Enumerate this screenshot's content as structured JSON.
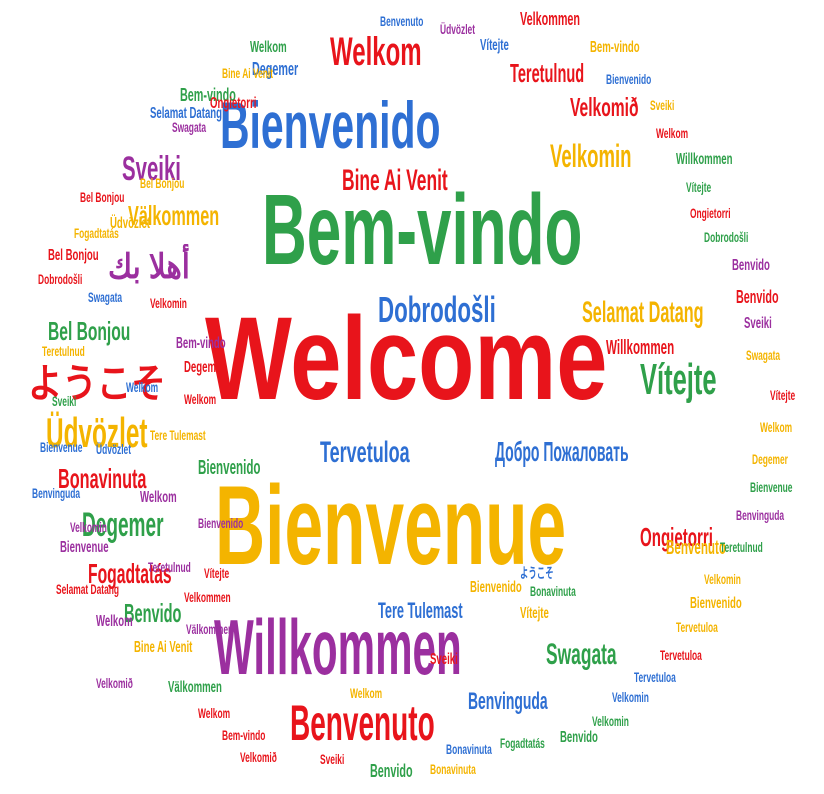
{
  "colors": {
    "red": "#e8141b",
    "blue": "#2e6fd3",
    "green": "#2fa04a",
    "orange": "#f4b400",
    "purple": "#9b2f9f",
    "background": "#ffffff"
  },
  "words": [
    {
      "text": "Welcome",
      "color": "red"
    },
    {
      "text": "Bienvenue",
      "color": "orange"
    },
    {
      "text": "Bem-vindo",
      "color": "green"
    },
    {
      "text": "Bienvenido",
      "color": "blue"
    },
    {
      "text": "Willkommen",
      "color": "purple"
    },
    {
      "text": "Benvenuto",
      "color": "red"
    },
    {
      "text": "Welkom",
      "color": "red"
    },
    {
      "text": "Dobrodošli",
      "color": "blue"
    },
    {
      "text": "Vítejte",
      "color": "green"
    },
    {
      "text": "Üdvözlet",
      "color": "orange"
    },
    {
      "text": "Välkommen",
      "color": "orange"
    },
    {
      "text": "Velkomin",
      "color": "orange"
    },
    {
      "text": "Sveiki",
      "color": "purple"
    },
    {
      "text": "Bine Ai Venit",
      "color": "red"
    },
    {
      "text": "Bonavinuta",
      "color": "red"
    },
    {
      "text": "Degemer",
      "color": "green"
    },
    {
      "text": "Fogadtatás",
      "color": "red"
    },
    {
      "text": "Tervetuloa",
      "color": "blue"
    },
    {
      "text": "Добро Пожаловать",
      "color": "blue"
    },
    {
      "text": "Selamat Datang",
      "color": "orange"
    },
    {
      "text": "Swagata",
      "color": "green"
    },
    {
      "text": "Velkomið",
      "color": "red"
    },
    {
      "text": "Teretulnud",
      "color": "red"
    },
    {
      "text": "Bel Bonjou",
      "color": "green"
    },
    {
      "text": "ようこそ",
      "color": "red"
    },
    {
      "text": "أهلا بك",
      "color": "purple"
    },
    {
      "text": "Benvido",
      "color": "green"
    },
    {
      "text": "Ongietorri",
      "color": "red"
    },
    {
      "text": "Tere Tulemast",
      "color": "blue"
    },
    {
      "text": "Benvinguda",
      "color": "blue"
    },
    {
      "text": "Willkommen",
      "color": "red"
    },
    {
      "text": "Bienvenido",
      "color": "green"
    },
    {
      "text": "Benvenuto",
      "color": "orange"
    },
    {
      "text": "Velkommen",
      "color": "red"
    },
    {
      "text": "Vítejte",
      "color": "blue"
    },
    {
      "text": "Bem-vindo",
      "color": "green"
    },
    {
      "text": "Swagata",
      "color": "purple"
    },
    {
      "text": "Degemer",
      "color": "blue"
    },
    {
      "text": "Ongietorri",
      "color": "red"
    },
    {
      "text": "Üdvözlet",
      "color": "orange"
    },
    {
      "text": "Bel Bonjou",
      "color": "red"
    },
    {
      "text": "Dobrodošli",
      "color": "red"
    },
    {
      "text": "Teretulnud",
      "color": "orange"
    },
    {
      "text": "Sveiki",
      "color": "green"
    },
    {
      "text": "Bienvenue",
      "color": "blue"
    },
    {
      "text": "Benvinguda",
      "color": "blue"
    },
    {
      "text": "Velkomin",
      "color": "purple"
    },
    {
      "text": "Bienvenue",
      "color": "purple"
    },
    {
      "text": "Selamat Datang",
      "color": "red"
    },
    {
      "text": "Welkom",
      "color": "purple"
    },
    {
      "text": "Bine Ai Venit",
      "color": "orange"
    },
    {
      "text": "Velkomið",
      "color": "purple"
    },
    {
      "text": "Välkommen",
      "color": "green"
    },
    {
      "text": "Welkom",
      "color": "red"
    },
    {
      "text": "Bem-vindo",
      "color": "red"
    },
    {
      "text": "Velkomið",
      "color": "red"
    },
    {
      "text": "Sveiki",
      "color": "red"
    },
    {
      "text": "Benvido",
      "color": "green"
    },
    {
      "text": "Bonavinuta",
      "color": "orange"
    },
    {
      "text": "Bonavinuta",
      "color": "blue"
    },
    {
      "text": "Fogadtatás",
      "color": "green"
    },
    {
      "text": "Benvido",
      "color": "green"
    },
    {
      "text": "Velkomin",
      "color": "green"
    },
    {
      "text": "Velkomin",
      "color": "blue"
    },
    {
      "text": "Tervetuloa",
      "color": "blue"
    },
    {
      "text": "Tervetuloa",
      "color": "red"
    },
    {
      "text": "Tervetuloa",
      "color": "orange"
    },
    {
      "text": "Bienvenido",
      "color": "orange"
    },
    {
      "text": "Velkomin",
      "color": "orange"
    },
    {
      "text": "Teretulnud",
      "color": "green"
    },
    {
      "text": "Benvinguda",
      "color": "purple"
    },
    {
      "text": "Bienvenue",
      "color": "green"
    },
    {
      "text": "Degemer",
      "color": "orange"
    },
    {
      "text": "Welkom",
      "color": "orange"
    },
    {
      "text": "Vítejte",
      "color": "red"
    },
    {
      "text": "Swagata",
      "color": "orange"
    },
    {
      "text": "Sveiki",
      "color": "purple"
    },
    {
      "text": "Benvido",
      "color": "red"
    },
    {
      "text": "Benvido",
      "color": "purple"
    },
    {
      "text": "Dobrodošli",
      "color": "green"
    },
    {
      "text": "Ongietorri",
      "color": "red"
    },
    {
      "text": "Vítejte",
      "color": "green"
    },
    {
      "text": "Willkommen",
      "color": "green"
    },
    {
      "text": "Welkom",
      "color": "red"
    },
    {
      "text": "Sveiki",
      "color": "orange"
    },
    {
      "text": "Bienvenido",
      "color": "blue"
    },
    {
      "text": "Bem-vindo",
      "color": "orange"
    },
    {
      "text": "Üdvözlet",
      "color": "purple"
    },
    {
      "text": "Benvenuto",
      "color": "blue"
    },
    {
      "text": "Welkom",
      "color": "green"
    },
    {
      "text": "Bine Ai Venit",
      "color": "orange"
    },
    {
      "text": "Selamat Datang",
      "color": "blue"
    },
    {
      "text": "Bel Bonjou",
      "color": "orange"
    },
    {
      "text": "Bel Bonjou",
      "color": "red"
    },
    {
      "text": "Fogadtatás",
      "color": "orange"
    },
    {
      "text": "Swagata",
      "color": "blue"
    },
    {
      "text": "Velkomin",
      "color": "red"
    },
    {
      "text": "Degemer",
      "color": "red"
    },
    {
      "text": "Welkom",
      "color": "red"
    },
    {
      "text": "Welkom",
      "color": "blue"
    },
    {
      "text": "Bem-vindo",
      "color": "purple"
    },
    {
      "text": "Tere Tulemast",
      "color": "orange"
    },
    {
      "text": "Üdvözlet",
      "color": "blue"
    },
    {
      "text": "Welkom",
      "color": "purple"
    },
    {
      "text": "Bienvenido",
      "color": "purple"
    },
    {
      "text": "Vítejte",
      "color": "red"
    },
    {
      "text": "Velkommen",
      "color": "red"
    },
    {
      "text": "Välkommen",
      "color": "purple"
    },
    {
      "text": "Teretulnud",
      "color": "purple"
    },
    {
      "text": "Bonavinuta",
      "color": "green"
    },
    {
      "text": "Bienvenido",
      "color": "orange"
    },
    {
      "text": "Vítejte",
      "color": "orange"
    },
    {
      "text": "ようこそ",
      "color": "blue"
    },
    {
      "text": "Sveiki",
      "color": "red"
    },
    {
      "text": "Welkom",
      "color": "orange"
    }
  ]
}
